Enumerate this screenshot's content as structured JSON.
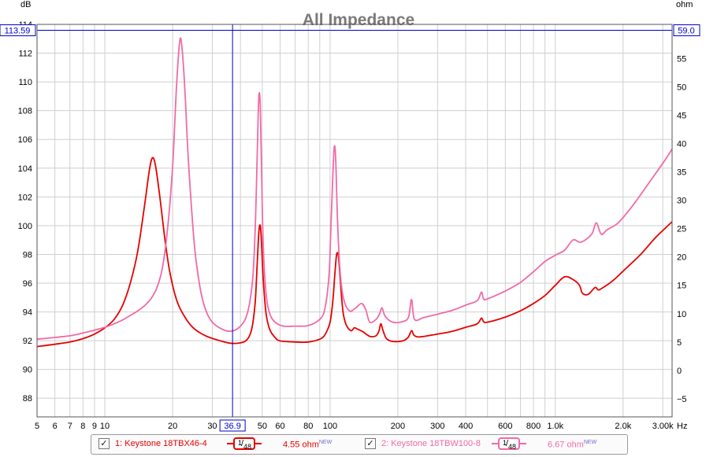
{
  "chart_data": {
    "type": "line",
    "title": "All Impedance",
    "left_axis_unit": "dB",
    "right_axis_unit": "ohm",
    "x_axis_unit": "Hz",
    "x_scale": "log",
    "xlim": [
      5,
      3300
    ],
    "ylim_left": [
      86.7,
      114
    ],
    "ylim_right": [
      -8.2,
      61
    ],
    "grid": true,
    "x_ticks": [
      {
        "v": 5,
        "label": "5"
      },
      {
        "v": 6,
        "label": "6"
      },
      {
        "v": 7,
        "label": "7"
      },
      {
        "v": 8,
        "label": "8"
      },
      {
        "v": 9,
        "label": "9"
      },
      {
        "v": 10,
        "label": "10"
      },
      {
        "v": 20,
        "label": "20"
      },
      {
        "v": 30,
        "label": "30"
      },
      {
        "v": 40,
        "label": ""
      },
      {
        "v": 50,
        "label": "50"
      },
      {
        "v": 60,
        "label": "60"
      },
      {
        "v": 80,
        "label": "80"
      },
      {
        "v": 100,
        "label": "100"
      },
      {
        "v": 200,
        "label": "200"
      },
      {
        "v": 300,
        "label": "300"
      },
      {
        "v": 400,
        "label": "400"
      },
      {
        "v": 600,
        "label": "600"
      },
      {
        "v": 800,
        "label": "800"
      },
      {
        "v": 1000,
        "label": "1.0k"
      },
      {
        "v": 2000,
        "label": "2.0k"
      },
      {
        "v": 3000,
        "label": "3.00k"
      }
    ],
    "x_minor_ticks": [
      70,
      90,
      500,
      700,
      900
    ],
    "y_left_ticks": [
      88,
      90,
      92,
      94,
      96,
      98,
      100,
      102,
      104,
      106,
      108,
      110,
      112,
      114
    ],
    "y_right_ticks": [
      -5,
      0,
      5,
      10,
      15,
      20,
      25,
      30,
      35,
      40,
      45,
      50,
      55,
      60
    ],
    "cursor": {
      "x": 36.9,
      "x_label": "36.9",
      "y_left": 113.59,
      "y_left_label": "113.59",
      "y_right_label": "59.0",
      "color": "#0000cc"
    },
    "series": [
      {
        "name": "1: Keystone 18TBX46-4",
        "color": "#e60000",
        "unit": "ohm",
        "points": [
          [
            5,
            4.2
          ],
          [
            6,
            4.6
          ],
          [
            7,
            5.0
          ],
          [
            8,
            5.6
          ],
          [
            9,
            6.4
          ],
          [
            10,
            7.5
          ],
          [
            11,
            9.0
          ],
          [
            12,
            11.5
          ],
          [
            13,
            15.5
          ],
          [
            14,
            21.0
          ],
          [
            15,
            29.0
          ],
          [
            15.8,
            35.5
          ],
          [
            16.3,
            37.5
          ],
          [
            16.8,
            36.0
          ],
          [
            17.5,
            31.0
          ],
          [
            18.5,
            23.0
          ],
          [
            19.5,
            17.0
          ],
          [
            21,
            12.0
          ],
          [
            23,
            9.0
          ],
          [
            25,
            7.3
          ],
          [
            28,
            6.1
          ],
          [
            32,
            5.3
          ],
          [
            36,
            4.8
          ],
          [
            40,
            4.85
          ],
          [
            43,
            5.5
          ],
          [
            45,
            7.5
          ],
          [
            46.5,
            12.0
          ],
          [
            47.5,
            19.0
          ],
          [
            48.3,
            24.5
          ],
          [
            49,
            25.5
          ],
          [
            49.6,
            22.5
          ],
          [
            50.5,
            16.0
          ],
          [
            52,
            10.0
          ],
          [
            54,
            7.2
          ],
          [
            57,
            5.8
          ],
          [
            60,
            5.2
          ],
          [
            70,
            5.0
          ],
          [
            80,
            5.0
          ],
          [
            90,
            5.5
          ],
          [
            95,
            6.3
          ],
          [
            100,
            8.5
          ],
          [
            103,
            12.5
          ],
          [
            105,
            17.0
          ],
          [
            107,
            20.5
          ],
          [
            109,
            20.0
          ],
          [
            111,
            16.0
          ],
          [
            114,
            10.5
          ],
          [
            118,
            8.0
          ],
          [
            124,
            7.0
          ],
          [
            128,
            7.5
          ],
          [
            132,
            7.3
          ],
          [
            140,
            6.8
          ],
          [
            150,
            6.0
          ],
          [
            160,
            6.1
          ],
          [
            165,
            7.0
          ],
          [
            168,
            8.2
          ],
          [
            172,
            7.0
          ],
          [
            178,
            5.6
          ],
          [
            190,
            5.1
          ],
          [
            210,
            5.2
          ],
          [
            222,
            5.8
          ],
          [
            230,
            7.0
          ],
          [
            236,
            6.2
          ],
          [
            250,
            5.9
          ],
          [
            300,
            6.4
          ],
          [
            350,
            6.9
          ],
          [
            400,
            7.6
          ],
          [
            450,
            8.2
          ],
          [
            470,
            9.2
          ],
          [
            480,
            8.6
          ],
          [
            500,
            8.5
          ],
          [
            600,
            9.4
          ],
          [
            700,
            10.5
          ],
          [
            800,
            11.8
          ],
          [
            900,
            13.2
          ],
          [
            1000,
            15.0
          ],
          [
            1100,
            16.5
          ],
          [
            1200,
            16.0
          ],
          [
            1280,
            15.0
          ],
          [
            1320,
            13.6
          ],
          [
            1400,
            13.4
          ],
          [
            1500,
            14.6
          ],
          [
            1550,
            14.2
          ],
          [
            1600,
            14.4
          ],
          [
            1800,
            15.8
          ],
          [
            2000,
            17.5
          ],
          [
            2400,
            20.5
          ],
          [
            2800,
            23.5
          ],
          [
            3300,
            26.2
          ]
        ]
      },
      {
        "name": "2: Keystone 18TBW100-8",
        "color": "#f06aa8",
        "unit": "ohm",
        "points": [
          [
            5,
            5.5
          ],
          [
            6,
            5.8
          ],
          [
            7,
            6.1
          ],
          [
            8,
            6.6
          ],
          [
            9,
            7.1
          ],
          [
            10,
            7.6
          ],
          [
            11,
            8.2
          ],
          [
            12,
            8.9
          ],
          [
            13,
            9.7
          ],
          [
            14,
            10.5
          ],
          [
            15,
            11.4
          ],
          [
            16,
            12.6
          ],
          [
            17,
            14.5
          ],
          [
            18,
            18.0
          ],
          [
            19,
            25.0
          ],
          [
            20,
            36.0
          ],
          [
            20.8,
            50.0
          ],
          [
            21.5,
            58.0
          ],
          [
            22,
            57.0
          ],
          [
            22.7,
            49.0
          ],
          [
            23.5,
            37.0
          ],
          [
            25,
            22.0
          ],
          [
            26.5,
            14.5
          ],
          [
            28,
            10.7
          ],
          [
            30,
            8.5
          ],
          [
            33,
            7.3
          ],
          [
            36,
            6.9
          ],
          [
            39,
            7.4
          ],
          [
            42,
            9.0
          ],
          [
            44,
            12.0
          ],
          [
            45.5,
            17.0
          ],
          [
            46.7,
            27.0
          ],
          [
            47.6,
            40.0
          ],
          [
            48.3,
            48.5
          ],
          [
            49,
            46.5
          ],
          [
            49.6,
            36.0
          ],
          [
            50.5,
            22.0
          ],
          [
            52,
            13.5
          ],
          [
            54,
            10.0
          ],
          [
            57,
            8.5
          ],
          [
            62,
            7.8
          ],
          [
            70,
            7.8
          ],
          [
            80,
            7.9
          ],
          [
            90,
            9.0
          ],
          [
            95,
            11.0
          ],
          [
            99,
            17.0
          ],
          [
            101,
            26.0
          ],
          [
            103,
            35.0
          ],
          [
            104.5,
            39.5
          ],
          [
            106,
            37.0
          ],
          [
            108,
            26.0
          ],
          [
            111,
            17.0
          ],
          [
            115,
            12.5
          ],
          [
            122,
            10.5
          ],
          [
            130,
            11.0
          ],
          [
            138,
            11.8
          ],
          [
            144,
            10.7
          ],
          [
            150,
            8.5
          ],
          [
            160,
            9.0
          ],
          [
            166,
            10.0
          ],
          [
            170,
            11.0
          ],
          [
            176,
            9.5
          ],
          [
            190,
            8.5
          ],
          [
            210,
            8.6
          ],
          [
            223,
            9.4
          ],
          [
            230,
            12.5
          ],
          [
            237,
            9.0
          ],
          [
            260,
            9.3
          ],
          [
            300,
            9.9
          ],
          [
            350,
            10.6
          ],
          [
            400,
            11.5
          ],
          [
            450,
            12.3
          ],
          [
            470,
            13.8
          ],
          [
            480,
            12.6
          ],
          [
            500,
            12.6
          ],
          [
            600,
            14.0
          ],
          [
            700,
            15.5
          ],
          [
            800,
            17.4
          ],
          [
            900,
            19.2
          ],
          [
            1000,
            20.3
          ],
          [
            1100,
            21.2
          ],
          [
            1200,
            23.0
          ],
          [
            1300,
            22.6
          ],
          [
            1450,
            24.0
          ],
          [
            1520,
            26.0
          ],
          [
            1600,
            24.0
          ],
          [
            1700,
            24.8
          ],
          [
            1900,
            26.0
          ],
          [
            2200,
            29.0
          ],
          [
            2600,
            33.0
          ],
          [
            3000,
            36.5
          ],
          [
            3300,
            39.0
          ]
        ]
      }
    ]
  },
  "legend": {
    "items": [
      {
        "check": "✓",
        "label": "1: Keystone 18TBX46-4",
        "smoothing_num": "1",
        "smoothing_den": "48",
        "offset": "4.55 ohm",
        "new_tag": "NEW",
        "color": "#e60000"
      },
      {
        "check": "✓",
        "label": "2: Keystone 18TBW100-8",
        "smoothing_num": "1",
        "smoothing_den": "48",
        "offset": "6.67 ohm",
        "new_tag": "NEW",
        "color": "#f06aa8"
      }
    ]
  }
}
